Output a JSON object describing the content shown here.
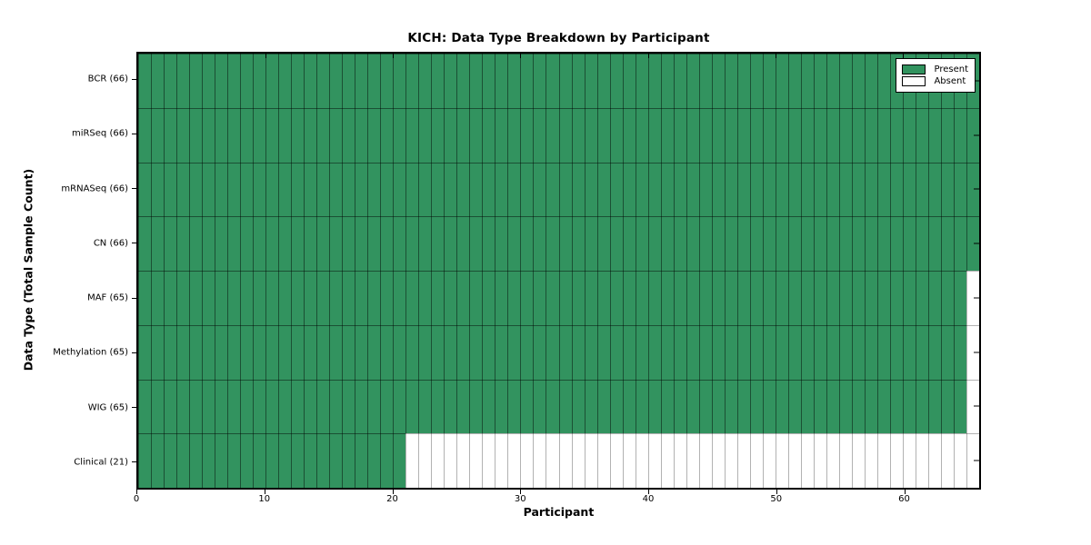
{
  "figure": {
    "title": "KICH: Data Type Breakdown by Participant",
    "xlabel": "Participant",
    "ylabel": "Data Type (Total Sample Count)"
  },
  "chart_data": {
    "type": "heatmap",
    "title": "KICH: Data Type Breakdown by Participant",
    "xlabel": "Participant",
    "ylabel": "Data Type (Total Sample Count)",
    "cohort": "KICH",
    "n_participants": 66,
    "x_range": [
      0,
      66
    ],
    "x_ticks": [
      0,
      10,
      20,
      30,
      40,
      50,
      60
    ],
    "grid": "per-cell edges on",
    "legend_position": "upper right (inside axes)",
    "rows": [
      {
        "label": "BCR (66)",
        "data_type": "BCR",
        "present_count": 66
      },
      {
        "label": "miRSeq (66)",
        "data_type": "miRSeq",
        "present_count": 66
      },
      {
        "label": "mRNASeq (66)",
        "data_type": "mRNASeq",
        "present_count": 66
      },
      {
        "label": "CN (66)",
        "data_type": "CN",
        "present_count": 66
      },
      {
        "label": "MAF (65)",
        "data_type": "MAF",
        "present_count": 65
      },
      {
        "label": "Methylation (65)",
        "data_type": "Methylation",
        "present_count": 65
      },
      {
        "label": "WIG (65)",
        "data_type": "WIG",
        "present_count": 65
      },
      {
        "label": "Clinical (21)",
        "data_type": "Clinical",
        "present_count": 21
      }
    ],
    "cell_values": "present = participant index < present_count, else absent",
    "legend": [
      {
        "label": "Present",
        "color": "#32935f"
      },
      {
        "label": "Absent",
        "color": "#ffffff"
      }
    ],
    "colors": {
      "present": "#32935f",
      "absent": "#ffffff"
    }
  }
}
